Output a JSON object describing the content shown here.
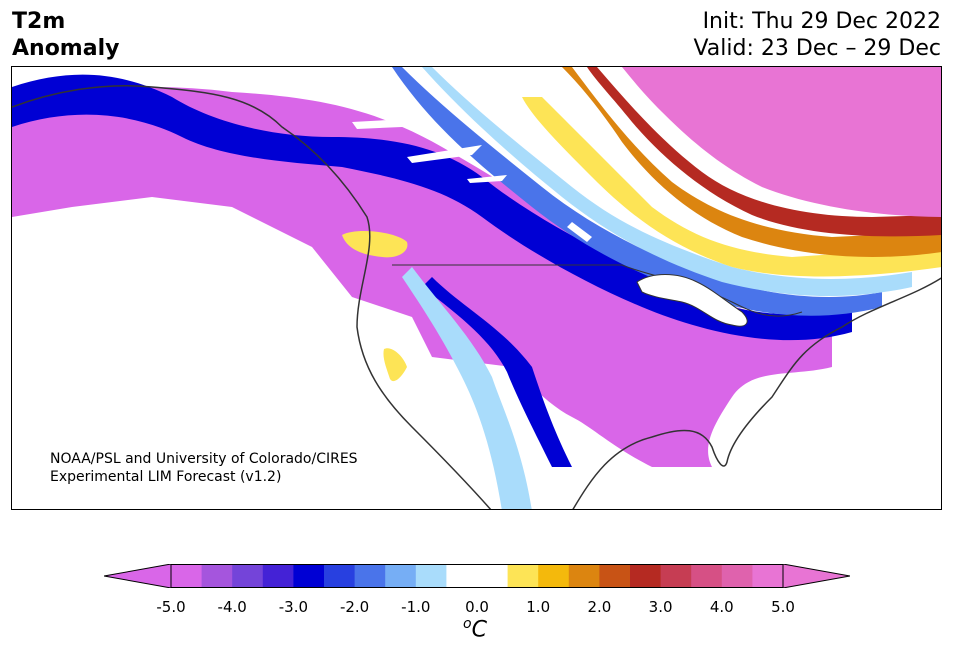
{
  "title": {
    "line1": "T2m",
    "line2": "Anomaly"
  },
  "dates": {
    "init": "Init: Thu 29 Dec 2022",
    "valid": "Valid: 23 Dec – 29 Dec"
  },
  "credit": {
    "line1": "NOAA/PSL and University of Colorado/CIRES",
    "line2": "Experimental LIM Forecast (v1.2)"
  },
  "colorbar": {
    "ticks": [
      "-5.0",
      "-4.0",
      "-3.0",
      "-2.0",
      "-1.0",
      "0.0",
      "1.0",
      "2.0",
      "3.0",
      "4.0",
      "5.0"
    ],
    "unit_o": "o",
    "unit_c": "C",
    "bins": [
      {
        "from": -5.0,
        "to": -4.5,
        "color": "#d966e8"
      },
      {
        "from": -4.5,
        "to": -4.0,
        "color": "#a555dd"
      },
      {
        "from": -4.0,
        "to": -3.5,
        "color": "#7444d9"
      },
      {
        "from": -3.5,
        "to": -3.0,
        "color": "#4422d6"
      },
      {
        "from": -3.0,
        "to": -2.5,
        "color": "#0000d4"
      },
      {
        "from": -2.5,
        "to": -2.0,
        "color": "#2840e0"
      },
      {
        "from": -2.0,
        "to": -1.5,
        "color": "#4a74ea"
      },
      {
        "from": -1.5,
        "to": -1.0,
        "color": "#76aef5"
      },
      {
        "from": -1.0,
        "to": -0.5,
        "color": "#a9dcfb"
      },
      {
        "from": -0.5,
        "to": 0.5,
        "color": "#ffffff"
      },
      {
        "from": 0.5,
        "to": 1.0,
        "color": "#fde456"
      },
      {
        "from": 1.0,
        "to": 1.5,
        "color": "#f4b90c"
      },
      {
        "from": 1.5,
        "to": 2.0,
        "color": "#dc8510"
      },
      {
        "from": 2.0,
        "to": 2.5,
        "color": "#c85315"
      },
      {
        "from": 2.5,
        "to": 3.0,
        "color": "#b52a22"
      },
      {
        "from": 3.0,
        "to": 3.5,
        "color": "#c63d53"
      },
      {
        "from": 3.5,
        "to": 4.0,
        "color": "#d65085"
      },
      {
        "from": 4.0,
        "to": 4.5,
        "color": "#df62ad"
      },
      {
        "from": 4.5,
        "to": 5.0,
        "color": "#e874d4"
      }
    ],
    "extend_low_color": "#d966e8",
    "extend_high_color": "#e874d4"
  }
}
